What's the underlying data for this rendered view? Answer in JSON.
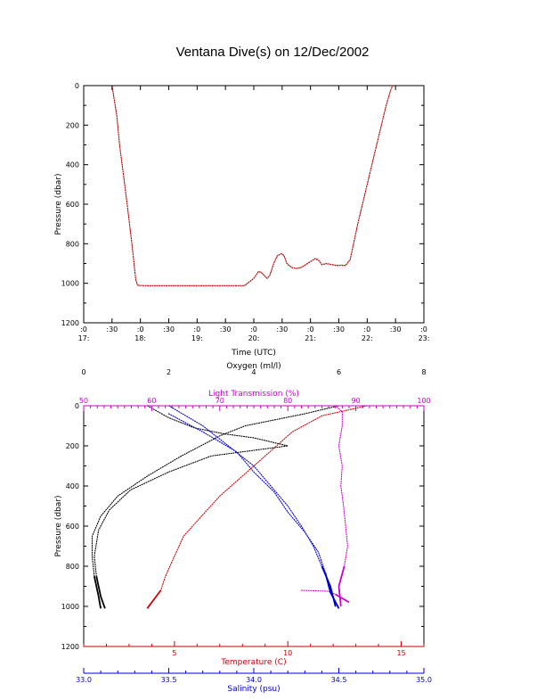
{
  "page": {
    "title": "Ventana Dive(s) on 12/Dec/2002"
  },
  "chart_data": [
    {
      "type": "line",
      "title": "",
      "xlabel": "Time (UTC)",
      "ylabel": "Pressure (dbar)",
      "xlim": [
        "17:00",
        "23:00"
      ],
      "ylim": [
        1200,
        0
      ],
      "x_ticks": [
        {
          "top": ":0",
          "bottom": "17:"
        },
        {
          "top": ":30",
          "bottom": ""
        },
        {
          "top": ":0",
          "bottom": "18:"
        },
        {
          "top": ":30",
          "bottom": ""
        },
        {
          "top": ":0",
          "bottom": "19:"
        },
        {
          "top": ":30",
          "bottom": ""
        },
        {
          "top": ":0",
          "bottom": "20:"
        },
        {
          "top": ":30",
          "bottom": ""
        },
        {
          "top": ":0",
          "bottom": "21:"
        },
        {
          "top": ":30",
          "bottom": ""
        },
        {
          "top": ":0",
          "bottom": "22:"
        },
        {
          "top": ":30",
          "bottom": ""
        },
        {
          "top": ":0",
          "bottom": "23:"
        }
      ],
      "y_ticks": [
        "0",
        "200",
        "400",
        "600",
        "800",
        "1000",
        "1200"
      ],
      "series": [
        {
          "color": "#cc0000",
          "points": [
            [
              "17:30",
              0
            ],
            [
              "17:35",
              150
            ],
            [
              "17:38",
              300
            ],
            [
              "17:42",
              450
            ],
            [
              "17:46",
              600
            ],
            [
              "17:51",
              800
            ],
            [
              "17:55",
              980
            ],
            [
              "17:57",
              1010
            ],
            [
              "18:05",
              1012
            ],
            [
              "18:30",
              1012
            ],
            [
              "19:00",
              1012
            ],
            [
              "19:30",
              1012
            ],
            [
              "19:50",
              1012
            ],
            [
              "19:56",
              990
            ],
            [
              "20:00",
              975
            ],
            [
              "20:05",
              940
            ],
            [
              "20:08",
              945
            ],
            [
              "20:12",
              965
            ],
            [
              "20:14",
              975
            ],
            [
              "20:17",
              960
            ],
            [
              "20:21",
              900
            ],
            [
              "20:25",
              860
            ],
            [
              "20:29",
              850
            ],
            [
              "20:32",
              860
            ],
            [
              "20:35",
              900
            ],
            [
              "20:40",
              920
            ],
            [
              "20:45",
              925
            ],
            [
              "20:50",
              920
            ],
            [
              "20:55",
              905
            ],
            [
              "21:00",
              890
            ],
            [
              "21:05",
              875
            ],
            [
              "21:08",
              880
            ],
            [
              "21:12",
              905
            ],
            [
              "21:17",
              900
            ],
            [
              "21:22",
              905
            ],
            [
              "21:28",
              910
            ],
            [
              "21:32",
              908
            ],
            [
              "21:37",
              910
            ],
            [
              "21:42",
              880
            ],
            [
              "21:46",
              790
            ],
            [
              "21:50",
              700
            ],
            [
              "21:55",
              600
            ],
            [
              "22:00",
              500
            ],
            [
              "22:05",
              400
            ],
            [
              "22:10",
              300
            ],
            [
              "22:15",
              200
            ],
            [
              "22:20",
              100
            ],
            [
              "22:25",
              20
            ],
            [
              "22:27",
              0
            ]
          ]
        }
      ]
    },
    {
      "type": "scatter",
      "title": "",
      "ylabel": "Pressure (dbar)",
      "ylim": [
        1200,
        0
      ],
      "y_ticks": [
        "0",
        "200",
        "400",
        "600",
        "800",
        "1000",
        "1200"
      ],
      "axes": [
        {
          "label": "Oxygen (ml/l)",
          "color": "#000000",
          "position": "top",
          "range": [
            0,
            8
          ],
          "ticks": [
            "0",
            "2",
            "4",
            "6",
            "8"
          ]
        },
        {
          "label": "Light Transmission (%)",
          "color": "#cc00cc",
          "position": "top",
          "range": [
            50,
            100
          ],
          "ticks": [
            "50",
            "60",
            "70",
            "80",
            "90",
            "100"
          ]
        },
        {
          "label": "Temperature (C)",
          "color": "#cc0000",
          "position": "bottom",
          "range": [
            1,
            16
          ],
          "ticks": [
            "5",
            "10",
            "15"
          ]
        },
        {
          "label": "Salinity (psu)",
          "color": "#0000cc",
          "position": "bottom",
          "range": [
            33.0,
            35.0
          ],
          "ticks": [
            "33.0",
            "33.5",
            "34.0",
            "34.5",
            "35.0"
          ]
        }
      ],
      "series": [
        {
          "color": "#000000",
          "axis": 0,
          "points": [
            [
              6.0,
              0
            ],
            [
              5.2,
              40
            ],
            [
              3.8,
              100
            ],
            [
              3.2,
              150
            ],
            [
              2.3,
              250
            ],
            [
              1.5,
              350
            ],
            [
              0.8,
              450
            ],
            [
              0.4,
              550
            ],
            [
              0.2,
              650
            ],
            [
              0.2,
              750
            ],
            [
              0.25,
              850
            ],
            [
              0.35,
              950
            ],
            [
              0.4,
              1010
            ]
          ]
        },
        {
          "color": "#000000",
          "axis": 0,
          "points": [
            [
              1.5,
              0
            ],
            [
              2.0,
              60
            ],
            [
              2.6,
              110
            ],
            [
              3.3,
              140
            ],
            [
              4.0,
              160
            ],
            [
              4.8,
              200
            ],
            [
              3.0,
              250
            ],
            [
              2.0,
              330
            ],
            [
              1.1,
              420
            ],
            [
              0.6,
              520
            ],
            [
              0.35,
              620
            ],
            [
              0.25,
              750
            ],
            [
              0.3,
              850
            ],
            [
              0.4,
              950
            ],
            [
              0.5,
              1010
            ]
          ]
        },
        {
          "color": "#cc00cc",
          "axis": 1,
          "points": [
            [
              87,
              0
            ],
            [
              88,
              30
            ],
            [
              88,
              100
            ],
            [
              87.5,
              200
            ],
            [
              88,
              300
            ],
            [
              87.8,
              400
            ],
            [
              88.2,
              500
            ],
            [
              88.5,
              600
            ],
            [
              88.8,
              700
            ],
            [
              88.3,
              800
            ],
            [
              87.5,
              900
            ],
            [
              87.8,
              1000
            ]
          ]
        },
        {
          "color": "#cc00cc",
          "axis": 1,
          "points": [
            [
              82,
              920
            ],
            [
              84,
              922
            ],
            [
              86,
              925
            ],
            [
              87,
              940
            ],
            [
              88,
              960
            ],
            [
              89,
              980
            ]
          ]
        },
        {
          "color": "#cc0000",
          "axis": 2,
          "points": [
            [
              13.5,
              0
            ],
            [
              11.5,
              50
            ],
            [
              10.2,
              130
            ],
            [
              9.0,
              250
            ],
            [
              8.2,
              330
            ],
            [
              7.0,
              450
            ],
            [
              6.2,
              550
            ],
            [
              5.4,
              650
            ],
            [
              5.0,
              750
            ],
            [
              4.6,
              850
            ],
            [
              4.4,
              920
            ],
            [
              4.0,
              980
            ],
            [
              3.8,
              1010
            ]
          ]
        },
        {
          "color": "#0000cc",
          "axis": 3,
          "points": [
            [
              33.5,
              0
            ],
            [
              33.7,
              100
            ],
            [
              33.85,
              200
            ],
            [
              34.0,
              300
            ],
            [
              34.1,
              400
            ],
            [
              34.2,
              500
            ],
            [
              34.28,
              600
            ],
            [
              34.35,
              700
            ],
            [
              34.4,
              800
            ],
            [
              34.45,
              900
            ],
            [
              34.48,
              1000
            ]
          ]
        },
        {
          "color": "#0000cc",
          "axis": 3,
          "points": [
            [
              33.5,
              40
            ],
            [
              33.7,
              130
            ],
            [
              33.9,
              230
            ],
            [
              34.0,
              330
            ],
            [
              34.12,
              430
            ],
            [
              34.2,
              530
            ],
            [
              34.3,
              630
            ],
            [
              34.38,
              730
            ],
            [
              34.42,
              830
            ],
            [
              34.45,
              930
            ],
            [
              34.5,
              1010
            ]
          ]
        }
      ]
    }
  ]
}
